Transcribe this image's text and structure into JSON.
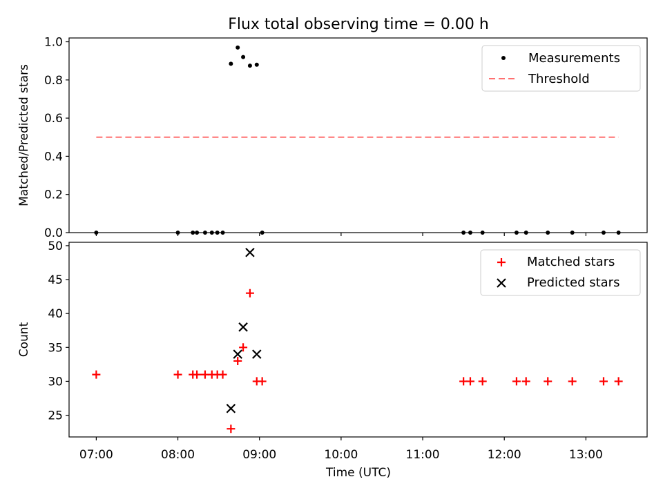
{
  "chart_data": [
    {
      "type": "scatter",
      "title": "Flux total observing time = 0.00 h",
      "xlabel": "",
      "ylabel": "Matched/Predicted stars",
      "xlim": [
        "06:40",
        "13:45"
      ],
      "ylim": [
        0,
        1.02
      ],
      "yticks": [
        "0.0",
        "0.2",
        "0.4",
        "0.6",
        "0.8",
        "1.0"
      ],
      "legend_position": "top-right",
      "series": [
        {
          "name": "Measurements",
          "kind": "dots",
          "color": "#000000",
          "points": [
            [
              "07:00",
              0
            ],
            [
              "08:00",
              0
            ],
            [
              "08:11",
              0
            ],
            [
              "08:14",
              0
            ],
            [
              "08:20",
              0
            ],
            [
              "08:25",
              0
            ],
            [
              "08:29",
              0
            ],
            [
              "08:33",
              0
            ],
            [
              "08:39",
              0.885
            ],
            [
              "08:44",
              0.97
            ],
            [
              "08:48",
              0.92
            ],
            [
              "08:53",
              0.875
            ],
            [
              "08:58",
              0.88
            ],
            [
              "09:02",
              0
            ],
            [
              "11:30",
              0
            ],
            [
              "11:35",
              0
            ],
            [
              "11:44",
              0
            ],
            [
              "12:09",
              0
            ],
            [
              "12:16",
              0
            ],
            [
              "12:32",
              0
            ],
            [
              "12:50",
              0
            ],
            [
              "13:13",
              0
            ],
            [
              "13:24",
              0
            ]
          ]
        },
        {
          "name": "Threshold",
          "kind": "dashed-line",
          "color": "#ff7070",
          "points": [
            [
              "07:00",
              0.5
            ],
            [
              "13:24",
              0.5
            ]
          ]
        }
      ]
    },
    {
      "type": "scatter",
      "title": "",
      "xlabel": "Time (UTC)",
      "ylabel": "Count",
      "xlim": [
        "06:40",
        "13:45"
      ],
      "ylim": [
        21.8,
        50.5
      ],
      "yticks": [
        "25",
        "30",
        "35",
        "40",
        "45",
        "50"
      ],
      "xticks": [
        "07:00",
        "08:00",
        "09:00",
        "10:00",
        "11:00",
        "12:00",
        "13:00"
      ],
      "legend_position": "top-right",
      "series": [
        {
          "name": "Matched stars",
          "kind": "plus",
          "color": "#ff0000",
          "points": [
            [
              "07:00",
              31
            ],
            [
              "08:00",
              31
            ],
            [
              "08:11",
              31
            ],
            [
              "08:14",
              31
            ],
            [
              "08:20",
              31
            ],
            [
              "08:25",
              31
            ],
            [
              "08:29",
              31
            ],
            [
              "08:33",
              31
            ],
            [
              "08:39",
              23
            ],
            [
              "08:44",
              33
            ],
            [
              "08:48",
              35
            ],
            [
              "08:53",
              43
            ],
            [
              "08:58",
              30
            ],
            [
              "09:02",
              30
            ],
            [
              "11:30",
              30
            ],
            [
              "11:35",
              30
            ],
            [
              "11:44",
              30
            ],
            [
              "12:09",
              30
            ],
            [
              "12:16",
              30
            ],
            [
              "12:32",
              30
            ],
            [
              "12:50",
              30
            ],
            [
              "13:13",
              30
            ],
            [
              "13:24",
              30
            ]
          ]
        },
        {
          "name": "Predicted stars",
          "kind": "x",
          "color": "#000000",
          "points": [
            [
              "08:39",
              26
            ],
            [
              "08:44",
              34
            ],
            [
              "08:48",
              38
            ],
            [
              "08:53",
              49
            ],
            [
              "08:58",
              34
            ]
          ]
        }
      ]
    }
  ]
}
